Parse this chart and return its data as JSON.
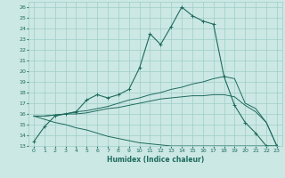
{
  "xlabel": "Humidex (Indice chaleur)",
  "bg_color": "#cce8e4",
  "grid_color": "#9ecdc8",
  "line_color": "#1e6b5e",
  "xlim": [
    -0.5,
    23.5
  ],
  "ylim": [
    13,
    26.5
  ],
  "xticks": [
    0,
    1,
    2,
    3,
    4,
    5,
    6,
    7,
    8,
    9,
    10,
    11,
    12,
    13,
    14,
    15,
    16,
    17,
    18,
    19,
    20,
    21,
    22,
    23
  ],
  "yticks": [
    13,
    14,
    15,
    16,
    17,
    18,
    19,
    20,
    21,
    22,
    23,
    24,
    25,
    26
  ],
  "curve1_x": [
    0,
    1,
    2,
    3,
    4,
    5,
    6,
    7,
    8,
    9,
    10,
    11,
    12,
    13,
    14,
    15,
    16,
    17,
    18,
    19,
    20,
    21,
    22,
    23
  ],
  "curve1_y": [
    13.4,
    14.8,
    15.8,
    16.0,
    16.2,
    17.3,
    17.8,
    17.5,
    17.8,
    18.3,
    20.3,
    23.5,
    22.5,
    24.2,
    26.0,
    25.2,
    24.7,
    24.4,
    19.5,
    16.8,
    15.2,
    14.2,
    13.0,
    13.0
  ],
  "curve2_x": [
    0,
    1,
    2,
    3,
    4,
    5,
    6,
    7,
    8,
    9,
    10,
    11,
    12,
    13,
    14,
    15,
    16,
    17,
    18,
    19,
    20,
    21,
    22,
    23
  ],
  "curve2_y": [
    15.8,
    15.8,
    15.9,
    16.0,
    16.2,
    16.3,
    16.5,
    16.7,
    17.0,
    17.3,
    17.5,
    17.8,
    18.0,
    18.3,
    18.5,
    18.8,
    19.0,
    19.3,
    19.5,
    19.3,
    17.0,
    16.5,
    15.2,
    13.0
  ],
  "curve3_x": [
    0,
    1,
    2,
    3,
    4,
    5,
    6,
    7,
    8,
    9,
    10,
    11,
    12,
    13,
    14,
    15,
    16,
    17,
    18,
    19,
    20,
    21,
    22,
    23
  ],
  "curve3_y": [
    15.8,
    15.8,
    15.9,
    16.0,
    16.0,
    16.1,
    16.3,
    16.5,
    16.6,
    16.8,
    17.0,
    17.2,
    17.4,
    17.5,
    17.6,
    17.7,
    17.7,
    17.8,
    17.8,
    17.6,
    16.8,
    16.2,
    15.2,
    13.0
  ],
  "curve4_x": [
    0,
    1,
    2,
    3,
    4,
    5,
    6,
    7,
    8,
    9,
    10,
    11,
    12,
    13,
    14,
    15,
    16,
    17,
    18,
    19,
    20,
    21,
    22,
    23
  ],
  "curve4_y": [
    15.8,
    15.5,
    15.2,
    15.0,
    14.7,
    14.5,
    14.2,
    13.9,
    13.7,
    13.5,
    13.3,
    13.2,
    13.1,
    13.0,
    13.0,
    13.0,
    13.0,
    13.0,
    13.0,
    13.0,
    13.0,
    13.0,
    13.0,
    13.0
  ]
}
